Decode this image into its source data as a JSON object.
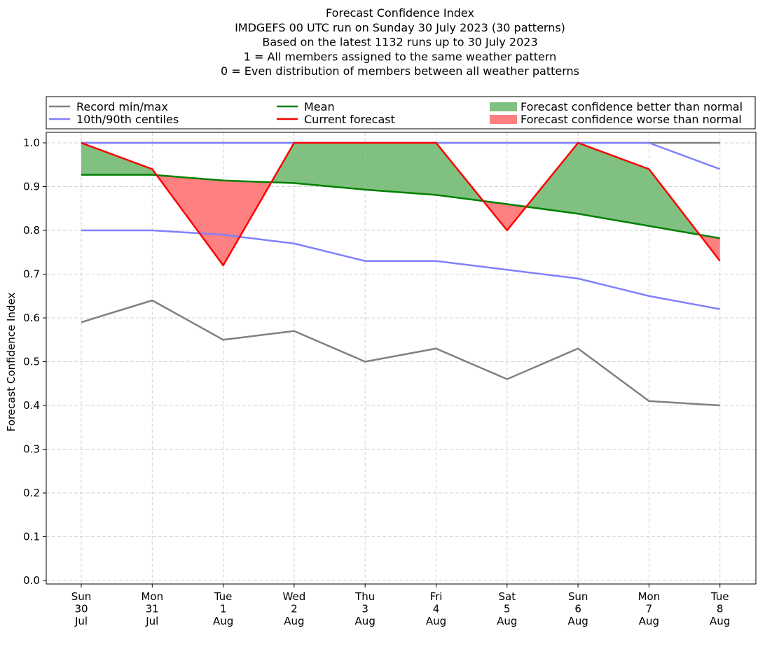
{
  "chart_data": {
    "type": "line",
    "title_lines": [
      "Forecast Confidence Index",
      "IMDGEFS 00 UTC run on Sunday 30 July 2023 (30 patterns)",
      "Based on the latest 1132 runs up to 30 July 2023",
      "1 = All members assigned to the same weather pattern",
      "0 = Even distribution of members between all weather patterns"
    ],
    "ylabel": "Forecast Confidence Index",
    "ylim": [
      0.0,
      1.0
    ],
    "yticks": [
      "0.0",
      "0.1",
      "0.2",
      "0.3",
      "0.4",
      "0.5",
      "0.6",
      "0.7",
      "0.8",
      "0.9",
      "1.0"
    ],
    "grid": true,
    "legend_position": "top, above plot",
    "categories": [
      [
        "Sun",
        "30",
        "Jul"
      ],
      [
        "Mon",
        "31",
        "Jul"
      ],
      [
        "Tue",
        "1",
        "Aug"
      ],
      [
        "Wed",
        "2",
        "Aug"
      ],
      [
        "Thu",
        "3",
        "Aug"
      ],
      [
        "Fri",
        "4",
        "Aug"
      ],
      [
        "Sat",
        "5",
        "Aug"
      ],
      [
        "Sun",
        "6",
        "Aug"
      ],
      [
        "Mon",
        "7",
        "Aug"
      ],
      [
        "Tue",
        "8",
        "Aug"
      ]
    ],
    "series": {
      "record_min": [
        0.59,
        0.64,
        0.55,
        0.57,
        0.5,
        0.53,
        0.46,
        0.53,
        0.41,
        0.4
      ],
      "record_max": [
        1.0,
        1.0,
        1.0,
        1.0,
        1.0,
        1.0,
        1.0,
        1.0,
        1.0,
        1.0
      ],
      "p10": [
        0.8,
        0.8,
        0.79,
        0.77,
        0.73,
        0.73,
        0.71,
        0.69,
        0.65,
        0.62
      ],
      "p90": [
        1.0,
        1.0,
        1.0,
        1.0,
        1.0,
        1.0,
        1.0,
        1.0,
        1.0,
        0.94
      ],
      "mean": [
        0.927,
        0.927,
        0.914,
        0.908,
        0.893,
        0.881,
        0.86,
        0.838,
        0.81,
        0.782
      ],
      "current": [
        1.0,
        0.94,
        0.72,
        1.0,
        1.0,
        1.0,
        0.8,
        1.0,
        0.94,
        0.73
      ]
    },
    "legend": [
      {
        "label": "Record min/max",
        "kind": "line",
        "color": "#808080"
      },
      {
        "label": "10th/90th centiles",
        "kind": "line",
        "color": "#8080ff"
      },
      {
        "label": "Mean",
        "kind": "line",
        "color": "#008000"
      },
      {
        "label": "Current forecast",
        "kind": "line",
        "color": "#ff0000"
      },
      {
        "label": "Forecast confidence better than normal",
        "kind": "patch",
        "color": "#80c080"
      },
      {
        "label": "Forecast confidence worse than normal",
        "kind": "patch",
        "color": "#ff8080"
      }
    ],
    "colors": {
      "record": "#808080",
      "centiles": "#8080ff",
      "mean": "#008000",
      "current": "#ff0000",
      "better_fill": "#80c080",
      "worse_fill": "#ff8080",
      "grid": "#d3d3d3"
    }
  }
}
